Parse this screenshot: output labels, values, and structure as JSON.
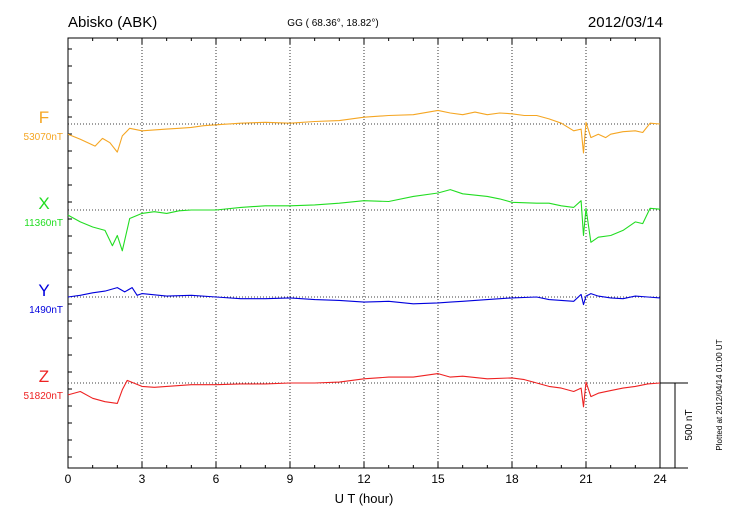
{
  "header": {
    "station": "Abisko (ABK)",
    "coords": "GG ( 68.36°,  18.82°)",
    "date": "2012/03/14"
  },
  "footer": {
    "plotted_at": "Plotted at 2012/04/14 01:00 UT",
    "scale_label": "500 nT"
  },
  "chart_data": {
    "type": "line",
    "xlabel": "U T (hour)",
    "xlim": [
      0,
      24
    ],
    "xticks": [
      0,
      3,
      6,
      9,
      12,
      15,
      18,
      21,
      24
    ],
    "xtick_labels": [
      "0",
      "3",
      "6",
      "9",
      "12",
      "15",
      "18",
      "21",
      "24"
    ],
    "grid": true,
    "scale_bar_nT": 500,
    "series": [
      {
        "name": "F",
        "baseline_label": "53070nT",
        "baseline_nT": 53070,
        "color": "#f5a623",
        "points": [
          [
            0,
            53010
          ],
          [
            0.5,
            52980
          ],
          [
            1.1,
            52940
          ],
          [
            1.4,
            52985
          ],
          [
            1.7,
            52960
          ],
          [
            2.0,
            52905
          ],
          [
            2.2,
            53000
          ],
          [
            2.5,
            53045
          ],
          [
            3.0,
            53030
          ],
          [
            3.5,
            53035
          ],
          [
            4.0,
            53040
          ],
          [
            4.5,
            53045
          ],
          [
            5.0,
            53050
          ],
          [
            5.5,
            53060
          ],
          [
            6.0,
            53065
          ],
          [
            7.0,
            53075
          ],
          [
            8.0,
            53080
          ],
          [
            9.0,
            53075
          ],
          [
            10.0,
            53085
          ],
          [
            11.0,
            53090
          ],
          [
            12.0,
            53110
          ],
          [
            13.0,
            53120
          ],
          [
            14.0,
            53125
          ],
          [
            15.0,
            53150
          ],
          [
            15.5,
            53135
          ],
          [
            16.0,
            53125
          ],
          [
            16.5,
            53140
          ],
          [
            17.0,
            53125
          ],
          [
            17.5,
            53135
          ],
          [
            18.0,
            53130
          ],
          [
            18.5,
            53120
          ],
          [
            19.0,
            53120
          ],
          [
            19.5,
            53100
          ],
          [
            20.0,
            53075
          ],
          [
            20.5,
            53030
          ],
          [
            20.8,
            53040
          ],
          [
            20.9,
            52900
          ],
          [
            21.0,
            53080
          ],
          [
            21.2,
            52990
          ],
          [
            21.5,
            53010
          ],
          [
            21.8,
            52990
          ],
          [
            22.0,
            53010
          ],
          [
            22.5,
            53025
          ],
          [
            23.0,
            53030
          ],
          [
            23.3,
            53020
          ],
          [
            23.6,
            53075
          ],
          [
            24.0,
            53070
          ]
        ]
      },
      {
        "name": "X",
        "baseline_label": "11360nT",
        "baseline_nT": 11360,
        "color": "#22dd22",
        "points": [
          [
            0,
            11330
          ],
          [
            0.5,
            11290
          ],
          [
            1.0,
            11260
          ],
          [
            1.5,
            11240
          ],
          [
            1.8,
            11150
          ],
          [
            2.0,
            11210
          ],
          [
            2.2,
            11120
          ],
          [
            2.5,
            11310
          ],
          [
            3.0,
            11340
          ],
          [
            3.5,
            11350
          ],
          [
            4.0,
            11340
          ],
          [
            4.5,
            11355
          ],
          [
            5.0,
            11360
          ],
          [
            6.0,
            11360
          ],
          [
            7.0,
            11375
          ],
          [
            8.0,
            11385
          ],
          [
            9.0,
            11385
          ],
          [
            10.0,
            11390
          ],
          [
            11.0,
            11400
          ],
          [
            12.0,
            11415
          ],
          [
            13.0,
            11410
          ],
          [
            14.0,
            11440
          ],
          [
            15.0,
            11460
          ],
          [
            15.5,
            11480
          ],
          [
            16.0,
            11455
          ],
          [
            17.0,
            11440
          ],
          [
            17.5,
            11425
          ],
          [
            18.0,
            11405
          ],
          [
            19.0,
            11400
          ],
          [
            19.5,
            11400
          ],
          [
            20.0,
            11385
          ],
          [
            20.5,
            11375
          ],
          [
            20.8,
            11415
          ],
          [
            20.9,
            11210
          ],
          [
            21.0,
            11370
          ],
          [
            21.2,
            11170
          ],
          [
            21.5,
            11200
          ],
          [
            22.0,
            11210
          ],
          [
            22.5,
            11240
          ],
          [
            23.0,
            11290
          ],
          [
            23.3,
            11280
          ],
          [
            23.6,
            11370
          ],
          [
            24.0,
            11365
          ]
        ]
      },
      {
        "name": "Y",
        "baseline_label": "1490nT",
        "baseline_nT": 1490,
        "color": "#0000dd",
        "points": [
          [
            0,
            1490
          ],
          [
            0.5,
            1500
          ],
          [
            1.0,
            1515
          ],
          [
            1.5,
            1525
          ],
          [
            2.0,
            1545
          ],
          [
            2.3,
            1520
          ],
          [
            2.6,
            1545
          ],
          [
            2.8,
            1500
          ],
          [
            3.0,
            1510
          ],
          [
            4.0,
            1495
          ],
          [
            5.0,
            1500
          ],
          [
            6.0,
            1490
          ],
          [
            7.0,
            1480
          ],
          [
            8.0,
            1480
          ],
          [
            9.0,
            1485
          ],
          [
            10.0,
            1475
          ],
          [
            11.0,
            1470
          ],
          [
            12.0,
            1460
          ],
          [
            13.0,
            1465
          ],
          [
            14.0,
            1450
          ],
          [
            15.0,
            1455
          ],
          [
            15.5,
            1460
          ],
          [
            16.0,
            1465
          ],
          [
            17.0,
            1475
          ],
          [
            18.0,
            1485
          ],
          [
            19.0,
            1490
          ],
          [
            19.5,
            1475
          ],
          [
            20.0,
            1470
          ],
          [
            20.5,
            1465
          ],
          [
            20.8,
            1505
          ],
          [
            20.9,
            1445
          ],
          [
            21.0,
            1495
          ],
          [
            21.2,
            1510
          ],
          [
            21.5,
            1495
          ],
          [
            22.0,
            1485
          ],
          [
            22.5,
            1480
          ],
          [
            23.0,
            1495
          ],
          [
            23.5,
            1490
          ],
          [
            24.0,
            1485
          ]
        ]
      },
      {
        "name": "Z",
        "baseline_label": "51820nT",
        "baseline_nT": 51820,
        "color": "#ee2222",
        "points": [
          [
            0,
            51750
          ],
          [
            0.5,
            51770
          ],
          [
            1.0,
            51730
          ],
          [
            1.5,
            51710
          ],
          [
            2.0,
            51700
          ],
          [
            2.2,
            51780
          ],
          [
            2.4,
            51835
          ],
          [
            3.0,
            51800
          ],
          [
            3.5,
            51795
          ],
          [
            4.0,
            51800
          ],
          [
            5.0,
            51810
          ],
          [
            6.0,
            51810
          ],
          [
            7.0,
            51815
          ],
          [
            8.0,
            51815
          ],
          [
            9.0,
            51820
          ],
          [
            10.0,
            51820
          ],
          [
            11.0,
            51825
          ],
          [
            12.0,
            51845
          ],
          [
            13.0,
            51855
          ],
          [
            14.0,
            51855
          ],
          [
            15.0,
            51875
          ],
          [
            15.5,
            51855
          ],
          [
            16.0,
            51860
          ],
          [
            17.0,
            51845
          ],
          [
            18.0,
            51850
          ],
          [
            18.5,
            51840
          ],
          [
            19.0,
            51820
          ],
          [
            19.5,
            51800
          ],
          [
            20.0,
            51790
          ],
          [
            20.5,
            51770
          ],
          [
            20.8,
            51790
          ],
          [
            20.9,
            51680
          ],
          [
            21.0,
            51825
          ],
          [
            21.2,
            51740
          ],
          [
            21.5,
            51760
          ],
          [
            22.0,
            51775
          ],
          [
            22.5,
            51790
          ],
          [
            23.0,
            51800
          ],
          [
            23.5,
            51815
          ],
          [
            24.0,
            51820
          ]
        ]
      }
    ]
  }
}
